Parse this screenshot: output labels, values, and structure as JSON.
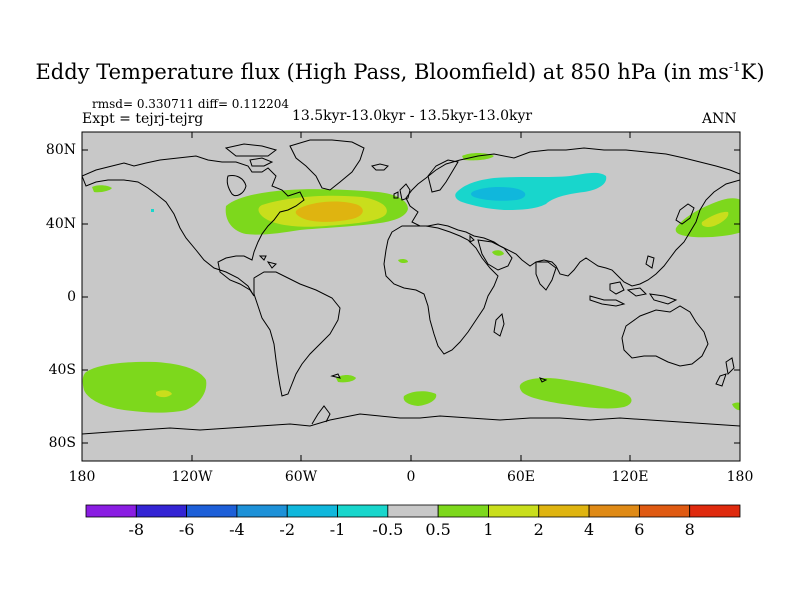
{
  "title": {
    "main": "Eddy Temperature flux (High Pass, Bloomfield) at 850 hPa (in ms",
    "sup": "-1",
    "end": "K)"
  },
  "header": {
    "stats": "rmsd= 0.330711 diff= 0.112204",
    "expt": "Expt = tejrj-tejrg",
    "period": "13.5kyr-13.0kyr - 13.5kyr-13.0kyr",
    "season": "ANN"
  },
  "axes": {
    "lat_labels": [
      "80N",
      "40N",
      "0",
      "40S",
      "80S"
    ],
    "lon_labels": [
      "180",
      "120W",
      "60W",
      "0",
      "60E",
      "120E",
      "180"
    ]
  },
  "colorbar": {
    "labels": [
      "-8",
      "-6",
      "-4",
      "-2",
      "-1",
      "-0.5",
      "0.5",
      "1",
      "2",
      "4",
      "6",
      "8"
    ],
    "colors": [
      "#8a1de2",
      "#3424d4",
      "#1d5fd8",
      "#1d91d8",
      "#10b7dc",
      "#18d6cc",
      "#c8c8c8",
      "#7dd81c",
      "#c9de1c",
      "#dfb410",
      "#df8a16",
      "#df5a12",
      "#df2a0e"
    ]
  },
  "colors": {
    "land_bg": "#c8c8c8",
    "green": "#7dd81c",
    "yellow": "#c9de1c",
    "orange": "#dfb410",
    "cyan": "#18d6cc",
    "lightblue": "#10b7dc"
  }
}
